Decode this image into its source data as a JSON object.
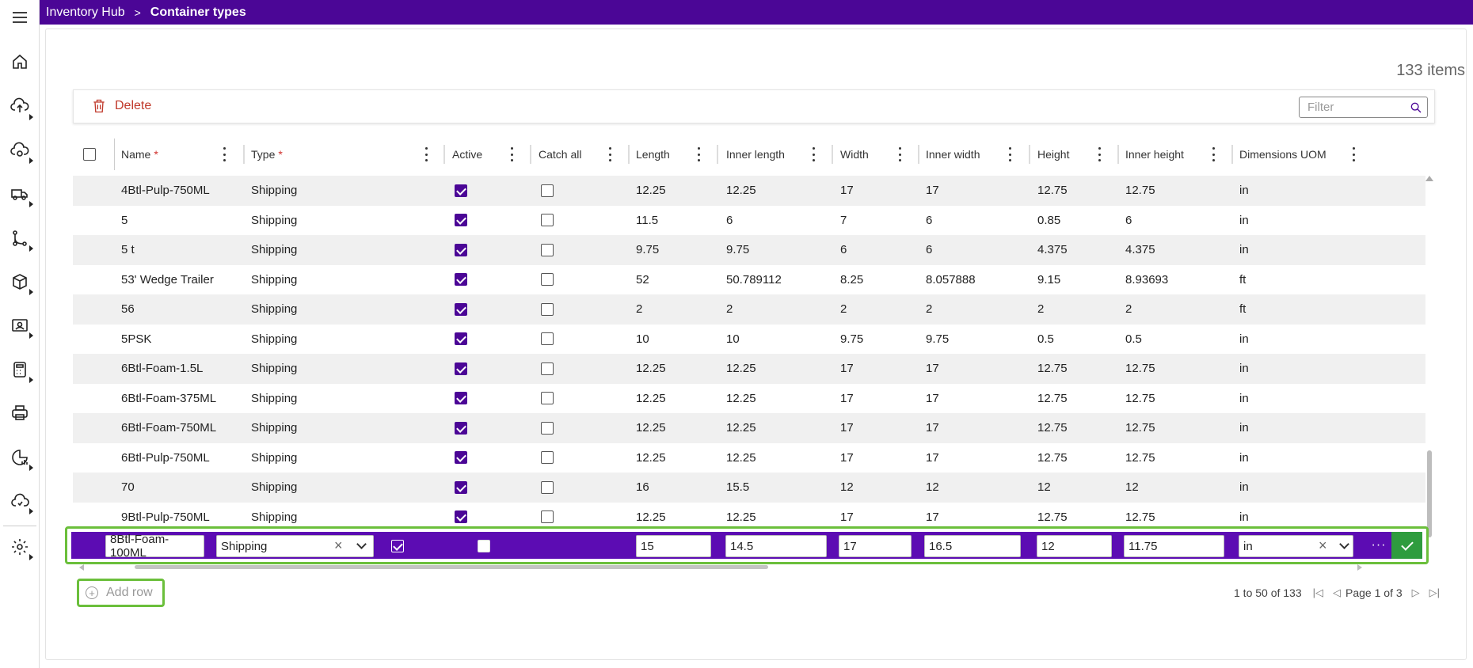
{
  "app": {
    "breadcrumb_root": "Inventory Hub",
    "breadcrumb_sep": ">",
    "page_title": "Container types"
  },
  "rail": {
    "icons": [
      "menu-icon",
      "home-icon",
      "upload-icon",
      "cloud-sync-icon",
      "truck-icon",
      "workflow-icon",
      "box-icon",
      "id-card-icon",
      "calculator-icon",
      "printer-icon",
      "report-icon",
      "cloud-icon",
      "settings-icon"
    ]
  },
  "summary": {
    "items_count": "133 items"
  },
  "toolbar": {
    "delete_label": "Delete",
    "filter_placeholder": "Filter"
  },
  "columns": [
    {
      "label": "Name",
      "required": "*"
    },
    {
      "label": "Type",
      "required": "*"
    },
    {
      "label": "Active",
      "required": ""
    },
    {
      "label": "Catch all",
      "required": ""
    },
    {
      "label": "Length",
      "required": ""
    },
    {
      "label": "Inner length",
      "required": ""
    },
    {
      "label": "Width",
      "required": ""
    },
    {
      "label": "Inner width",
      "required": ""
    },
    {
      "label": "Height",
      "required": ""
    },
    {
      "label": "Inner height",
      "required": ""
    },
    {
      "label": "Dimensions UOM",
      "required": ""
    }
  ],
  "rows": [
    {
      "name": "4Btl-Pulp-750ML",
      "type": "Shipping",
      "active": true,
      "catch_all": false,
      "length": "12.25",
      "inner_length": "12.25",
      "width": "17",
      "inner_width": "17",
      "height": "12.75",
      "inner_height": "12.75",
      "uom": "in"
    },
    {
      "name": "5",
      "type": "Shipping",
      "active": true,
      "catch_all": false,
      "length": "11.5",
      "inner_length": "6",
      "width": "7",
      "inner_width": "6",
      "height": "0.85",
      "inner_height": "6",
      "uom": "in"
    },
    {
      "name": "5 t",
      "type": "Shipping",
      "active": true,
      "catch_all": false,
      "length": "9.75",
      "inner_length": "9.75",
      "width": "6",
      "inner_width": "6",
      "height": "4.375",
      "inner_height": "4.375",
      "uom": "in"
    },
    {
      "name": "53' Wedge Trailer",
      "type": "Shipping",
      "active": true,
      "catch_all": false,
      "length": "52",
      "inner_length": "50.789112",
      "width": "8.25",
      "inner_width": "8.057888",
      "height": "9.15",
      "inner_height": "8.93693",
      "uom": "ft"
    },
    {
      "name": "56",
      "type": "Shipping",
      "active": true,
      "catch_all": false,
      "length": "2",
      "inner_length": "2",
      "width": "2",
      "inner_width": "2",
      "height": "2",
      "inner_height": "2",
      "uom": "ft"
    },
    {
      "name": "5PSK",
      "type": "Shipping",
      "active": true,
      "catch_all": false,
      "length": "10",
      "inner_length": "10",
      "width": "9.75",
      "inner_width": "9.75",
      "height": "0.5",
      "inner_height": "0.5",
      "uom": "in"
    },
    {
      "name": "6Btl-Foam-1.5L",
      "type": "Shipping",
      "active": true,
      "catch_all": false,
      "length": "12.25",
      "inner_length": "12.25",
      "width": "17",
      "inner_width": "17",
      "height": "12.75",
      "inner_height": "12.75",
      "uom": "in"
    },
    {
      "name": "6Btl-Foam-375ML",
      "type": "Shipping",
      "active": true,
      "catch_all": false,
      "length": "12.25",
      "inner_length": "12.25",
      "width": "17",
      "inner_width": "17",
      "height": "12.75",
      "inner_height": "12.75",
      "uom": "in"
    },
    {
      "name": "6Btl-Foam-750ML",
      "type": "Shipping",
      "active": true,
      "catch_all": false,
      "length": "12.25",
      "inner_length": "12.25",
      "width": "17",
      "inner_width": "17",
      "height": "12.75",
      "inner_height": "12.75",
      "uom": "in"
    },
    {
      "name": "6Btl-Pulp-750ML",
      "type": "Shipping",
      "active": true,
      "catch_all": false,
      "length": "12.25",
      "inner_length": "12.25",
      "width": "17",
      "inner_width": "17",
      "height": "12.75",
      "inner_height": "12.75",
      "uom": "in"
    },
    {
      "name": "70",
      "type": "Shipping",
      "active": true,
      "catch_all": false,
      "length": "16",
      "inner_length": "15.5",
      "width": "12",
      "inner_width": "12",
      "height": "12",
      "inner_height": "12",
      "uom": "in"
    },
    {
      "name": "9Btl-Pulp-750ML",
      "type": "Shipping",
      "active": true,
      "catch_all": false,
      "length": "12.25",
      "inner_length": "12.25",
      "width": "17",
      "inner_width": "17",
      "height": "12.75",
      "inner_height": "12.75",
      "uom": "in"
    }
  ],
  "edit_row": {
    "name": "8Btl-Foam-100ML",
    "type": "Shipping",
    "active": true,
    "catch_all": false,
    "length": "15",
    "inner_length": "14.5",
    "width": "17",
    "inner_width": "16.5",
    "height": "12",
    "inner_height": "11.75",
    "uom": "in",
    "more_label": "···"
  },
  "footer": {
    "add_row_label": "Add row",
    "range_text": "1 to 50 of 133",
    "page_text": "Page 1 of 3"
  },
  "colors": {
    "brand": "#4b0696",
    "edit_row_bg": "#5c0cb3",
    "highlight": "#6bbf3b",
    "save": "#2e9c3e",
    "delete": "#c0392b"
  }
}
